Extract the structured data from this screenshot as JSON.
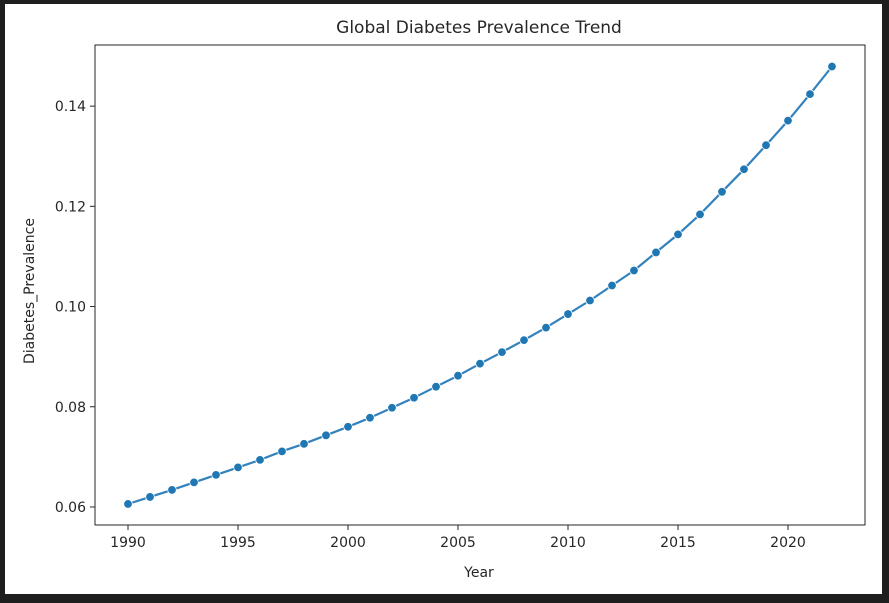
{
  "chart_data": {
    "type": "line",
    "title": "Global Diabetes Prevalence Trend",
    "xlabel": "Year",
    "ylabel": "Diabetes_Prevalence",
    "xlim": [
      1988.5,
      2023.5
    ],
    "ylim": [
      0.0564,
      0.1522
    ],
    "xticks": [
      1990,
      1995,
      2000,
      2005,
      2010,
      2015,
      2020
    ],
    "yticks": [
      0.06,
      0.08,
      0.1,
      0.12,
      0.14
    ],
    "ytick_labels": [
      "0.06",
      "0.08",
      "0.10",
      "0.12",
      "0.14"
    ],
    "grid": false,
    "line_color": "#3282bd",
    "marker_color": "#1f77b4",
    "series": [
      {
        "x": [
          1990,
          1991,
          1992,
          1993,
          1994,
          1995,
          1996,
          1997,
          1998,
          1999,
          2000,
          2001,
          2002,
          2003,
          2004,
          2005,
          2006,
          2007,
          2008,
          2009,
          2010,
          2011,
          2012,
          2013,
          2014,
          2015,
          2016,
          2017,
          2018,
          2019,
          2020,
          2021,
          2022
        ],
        "values": [
          0.0606,
          0.062,
          0.0634,
          0.0649,
          0.0664,
          0.0679,
          0.0694,
          0.0711,
          0.0726,
          0.0743,
          0.076,
          0.0778,
          0.0798,
          0.0818,
          0.084,
          0.0862,
          0.0886,
          0.0909,
          0.0933,
          0.0958,
          0.0985,
          0.1012,
          0.1042,
          0.1072,
          0.1108,
          0.1144,
          0.1184,
          0.1229,
          0.1274,
          0.1322,
          0.1371,
          0.1424,
          0.1479
        ]
      }
    ]
  }
}
